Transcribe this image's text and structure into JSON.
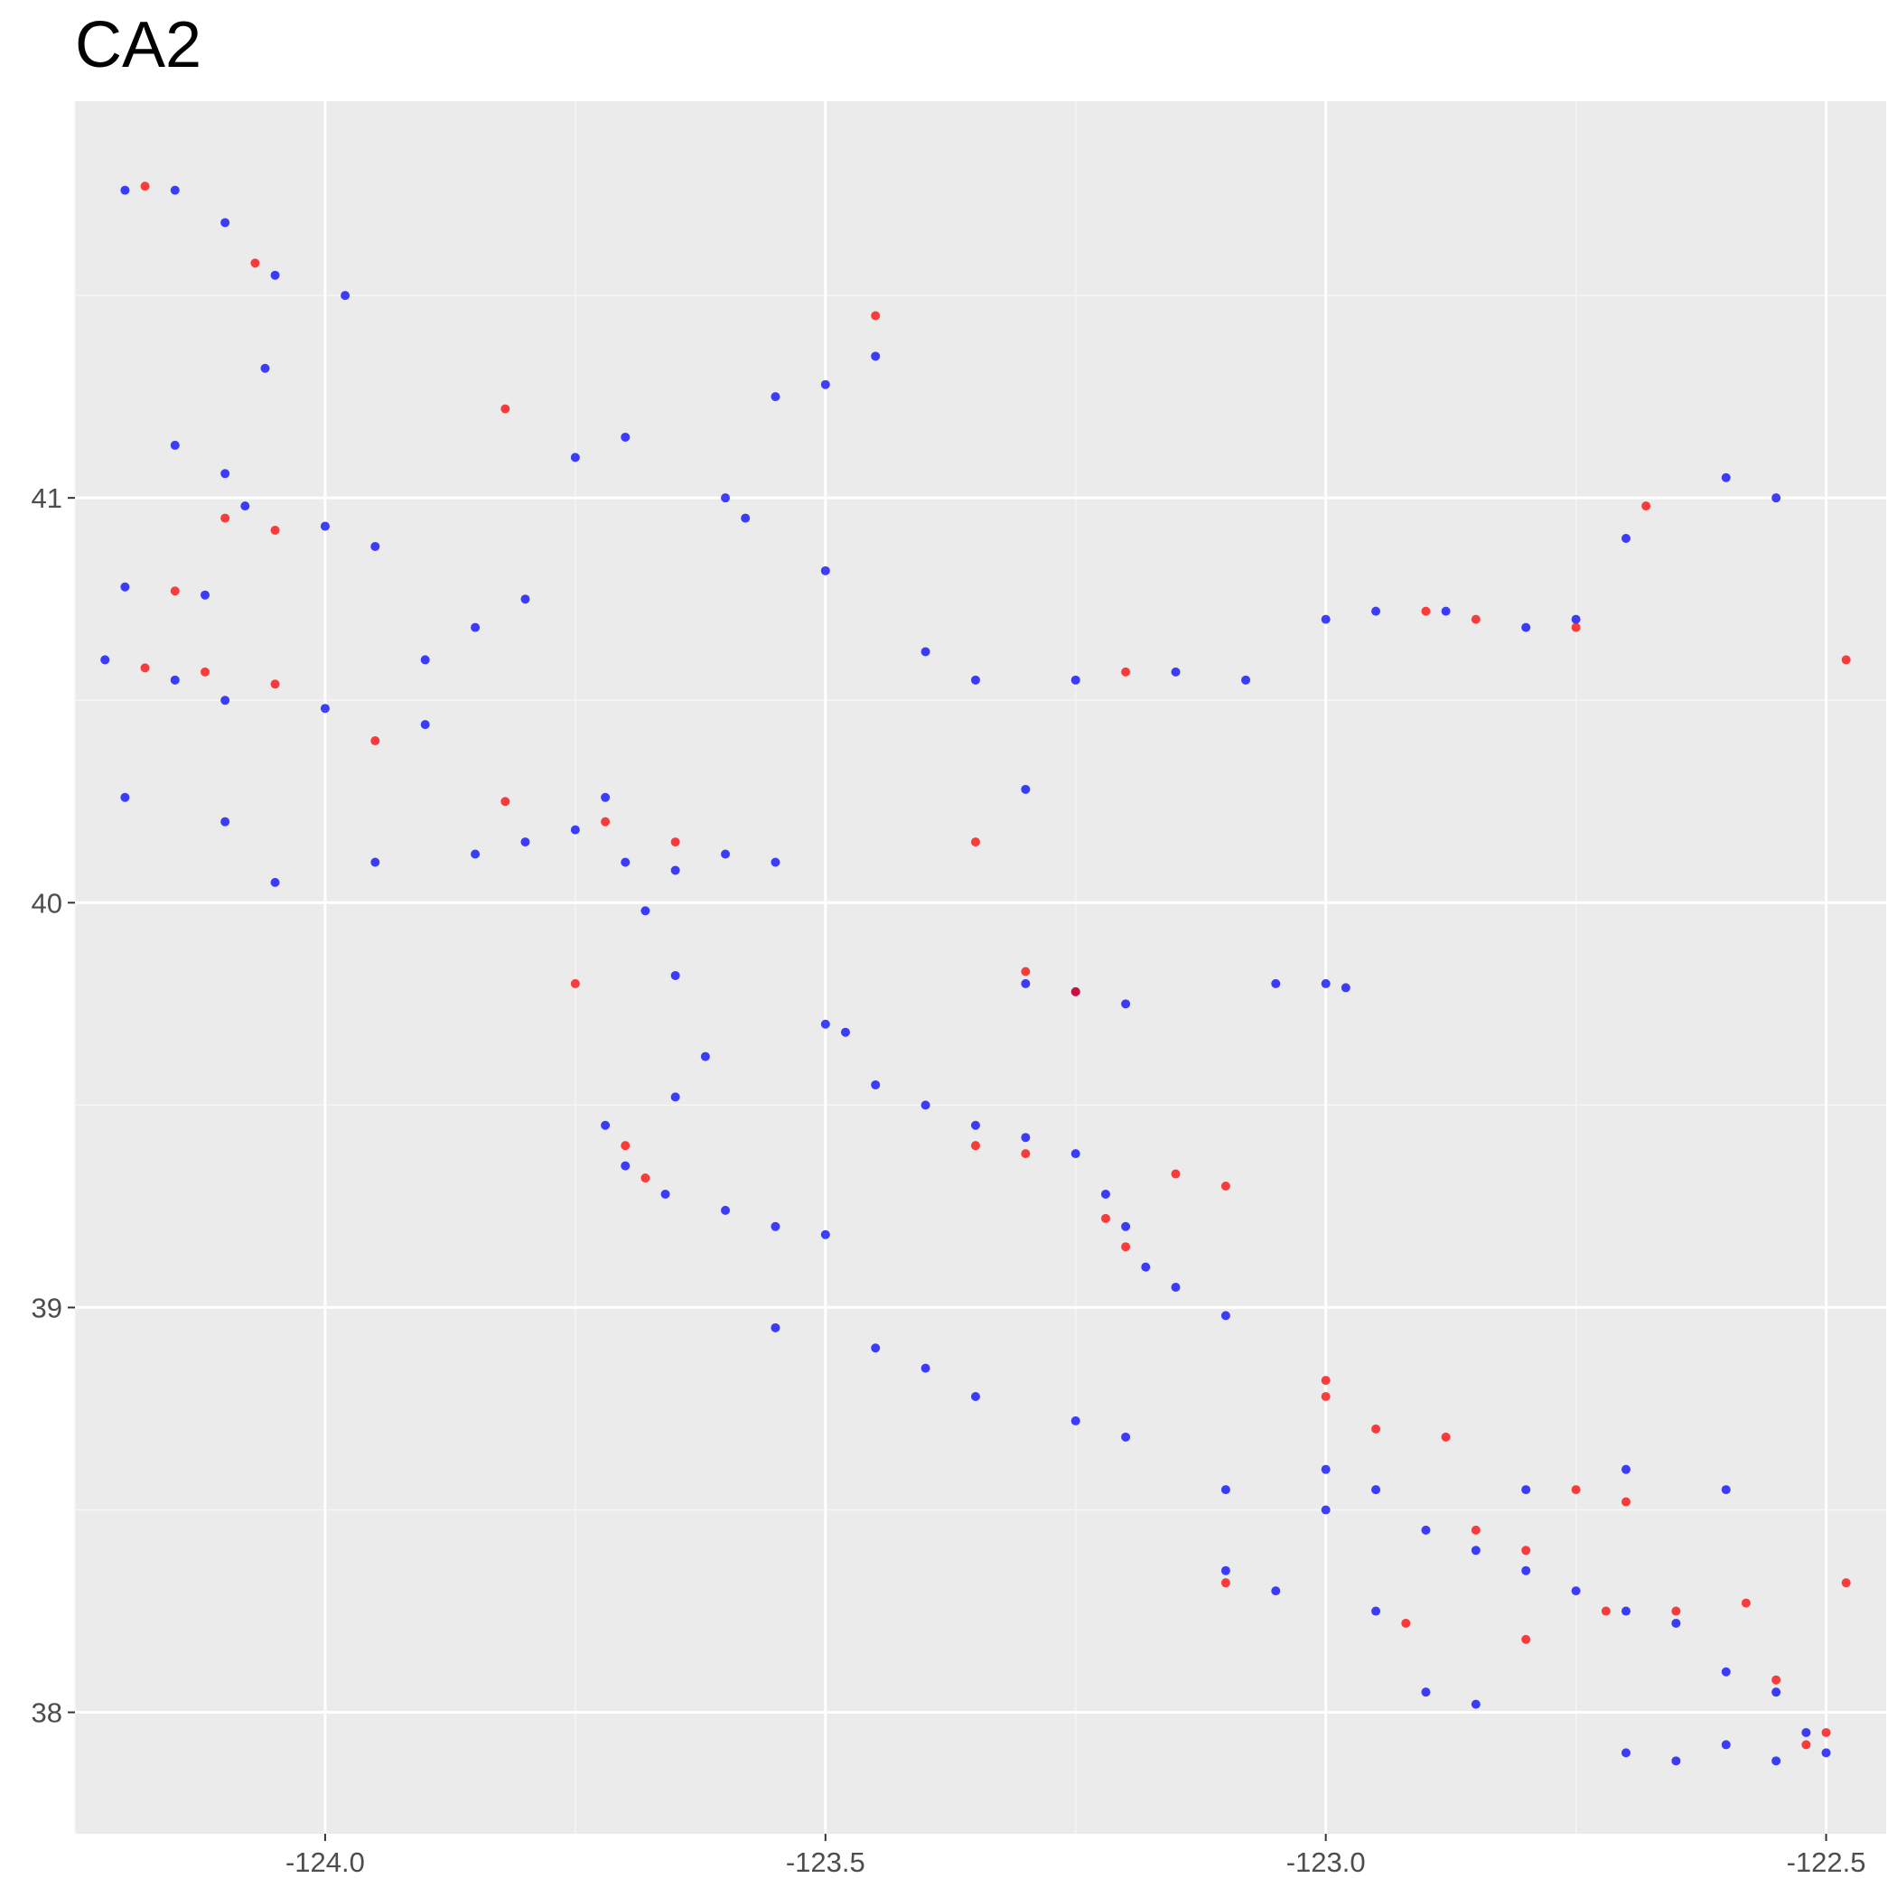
{
  "chart_data": {
    "type": "scatter",
    "title": "CA2",
    "xlabel": "",
    "ylabel": "",
    "xlim": [
      -124.25,
      -122.44
    ],
    "ylim": [
      37.7,
      41.98
    ],
    "grid": true,
    "legend": "none",
    "colors": {
      "panel": "#ebebeb",
      "grid_major": "#ffffff",
      "grid_minor": "#f6f6f6",
      "series_a": "#0000ff",
      "series_b": "#ff0000",
      "axis_text": "#4d4d4d"
    },
    "x_ticks": [
      -124.0,
      -123.5,
      -123.0,
      -122.5
    ],
    "x_tick_labels": [
      "-124.0",
      "-123.5",
      "-123.0",
      "-122.5"
    ],
    "y_ticks": [
      38,
      39,
      40,
      41
    ],
    "y_tick_labels": [
      "38",
      "39",
      "40",
      "41"
    ],
    "series": [
      {
        "color": "#0000ff",
        "points": [
          [
            -124.2,
            41.76
          ],
          [
            -124.15,
            41.76
          ],
          [
            -124.1,
            41.68
          ],
          [
            -124.05,
            41.55
          ],
          [
            -123.98,
            41.5
          ],
          [
            -124.06,
            41.32
          ],
          [
            -124.15,
            41.13
          ],
          [
            -124.1,
            41.06
          ],
          [
            -124.08,
            40.98
          ],
          [
            -124.0,
            40.93
          ],
          [
            -123.95,
            40.88
          ],
          [
            -124.2,
            40.78
          ],
          [
            -124.12,
            40.76
          ],
          [
            -124.22,
            40.6
          ],
          [
            -124.15,
            40.55
          ],
          [
            -124.1,
            40.5
          ],
          [
            -124.0,
            40.48
          ],
          [
            -123.9,
            40.44
          ],
          [
            -124.2,
            40.26
          ],
          [
            -124.1,
            40.2
          ],
          [
            -124.05,
            40.05
          ],
          [
            -123.95,
            40.1
          ],
          [
            -123.85,
            40.12
          ],
          [
            -123.8,
            40.15
          ],
          [
            -123.75,
            40.18
          ],
          [
            -123.72,
            40.26
          ],
          [
            -123.7,
            40.1
          ],
          [
            -123.65,
            40.08
          ],
          [
            -123.6,
            40.12
          ],
          [
            -123.55,
            40.1
          ],
          [
            -123.68,
            39.98
          ],
          [
            -123.65,
            39.82
          ],
          [
            -123.62,
            39.62
          ],
          [
            -123.65,
            39.52
          ],
          [
            -123.72,
            39.45
          ],
          [
            -123.7,
            39.35
          ],
          [
            -123.66,
            39.28
          ],
          [
            -123.6,
            39.24
          ],
          [
            -123.55,
            39.2
          ],
          [
            -123.5,
            39.18
          ],
          [
            -123.55,
            38.95
          ],
          [
            -123.45,
            38.9
          ],
          [
            -123.4,
            38.85
          ],
          [
            -123.35,
            38.78
          ],
          [
            -123.25,
            38.72
          ],
          [
            -123.2,
            38.68
          ],
          [
            -123.1,
            38.55
          ],
          [
            -123.0,
            38.5
          ],
          [
            -122.9,
            38.45
          ],
          [
            -122.85,
            38.4
          ],
          [
            -122.8,
            38.35
          ],
          [
            -122.75,
            38.3
          ],
          [
            -122.7,
            38.25
          ],
          [
            -122.65,
            38.22
          ],
          [
            -122.6,
            38.1
          ],
          [
            -122.55,
            38.05
          ],
          [
            -122.52,
            37.95
          ],
          [
            -122.5,
            37.9
          ],
          [
            -122.55,
            37.88
          ],
          [
            -122.6,
            37.92
          ],
          [
            -123.45,
            39.55
          ],
          [
            -123.4,
            39.5
          ],
          [
            -123.35,
            39.45
          ],
          [
            -123.3,
            39.42
          ],
          [
            -123.25,
            39.38
          ],
          [
            -123.22,
            39.28
          ],
          [
            -123.2,
            39.2
          ],
          [
            -123.18,
            39.1
          ],
          [
            -123.15,
            39.05
          ],
          [
            -123.1,
            38.98
          ],
          [
            -123.3,
            39.8
          ],
          [
            -123.25,
            39.78
          ],
          [
            -123.2,
            39.75
          ],
          [
            -123.5,
            39.7
          ],
          [
            -123.48,
            39.68
          ],
          [
            -123.35,
            40.55
          ],
          [
            -123.25,
            40.55
          ],
          [
            -123.15,
            40.57
          ],
          [
            -123.08,
            40.55
          ],
          [
            -123.0,
            40.7
          ],
          [
            -122.95,
            40.72
          ],
          [
            -122.88,
            40.72
          ],
          [
            -122.8,
            40.68
          ],
          [
            -122.75,
            40.7
          ],
          [
            -122.7,
            40.9
          ],
          [
            -122.6,
            41.05
          ],
          [
            -122.55,
            41.0
          ],
          [
            -123.45,
            41.35
          ],
          [
            -123.5,
            41.28
          ],
          [
            -123.55,
            41.25
          ],
          [
            -123.6,
            41.0
          ],
          [
            -123.58,
            40.95
          ],
          [
            -123.5,
            40.82
          ],
          [
            -123.4,
            40.62
          ],
          [
            -123.3,
            40.28
          ],
          [
            -123.9,
            40.6
          ],
          [
            -123.85,
            40.68
          ],
          [
            -123.8,
            40.75
          ],
          [
            -123.75,
            41.1
          ],
          [
            -123.7,
            41.15
          ],
          [
            -123.0,
            38.6
          ],
          [
            -122.95,
            38.55
          ],
          [
            -122.8,
            38.55
          ],
          [
            -122.7,
            38.6
          ],
          [
            -122.6,
            38.55
          ],
          [
            -123.1,
            38.35
          ],
          [
            -123.05,
            38.3
          ],
          [
            -122.95,
            38.25
          ],
          [
            -122.9,
            38.05
          ],
          [
            -122.85,
            38.02
          ],
          [
            -122.7,
            37.9
          ],
          [
            -122.65,
            37.88
          ],
          [
            -123.0,
            39.8
          ],
          [
            -123.05,
            39.8
          ],
          [
            -122.98,
            39.79
          ]
        ]
      },
      {
        "color": "#ff0000",
        "points": [
          [
            -124.18,
            41.77
          ],
          [
            -124.07,
            41.58
          ],
          [
            -124.1,
            40.95
          ],
          [
            -124.05,
            40.92
          ],
          [
            -124.18,
            40.58
          ],
          [
            -124.12,
            40.57
          ],
          [
            -124.05,
            40.54
          ],
          [
            -124.15,
            40.77
          ],
          [
            -123.95,
            40.4
          ],
          [
            -123.82,
            40.25
          ],
          [
            -123.72,
            40.2
          ],
          [
            -123.65,
            40.15
          ],
          [
            -123.7,
            39.4
          ],
          [
            -123.68,
            39.32
          ],
          [
            -123.35,
            39.4
          ],
          [
            -123.3,
            39.38
          ],
          [
            -123.22,
            39.22
          ],
          [
            -123.2,
            39.15
          ],
          [
            -123.15,
            39.33
          ],
          [
            -123.1,
            39.3
          ],
          [
            -123.0,
            38.78
          ],
          [
            -122.95,
            38.7
          ],
          [
            -122.88,
            38.68
          ],
          [
            -122.85,
            38.45
          ],
          [
            -122.8,
            38.4
          ],
          [
            -122.72,
            38.25
          ],
          [
            -122.65,
            38.25
          ],
          [
            -122.55,
            38.08
          ],
          [
            -122.52,
            37.92
          ],
          [
            -122.5,
            37.95
          ],
          [
            -122.9,
            40.72
          ],
          [
            -122.85,
            40.7
          ],
          [
            -122.75,
            40.68
          ],
          [
            -122.68,
            40.98
          ],
          [
            -123.2,
            40.57
          ],
          [
            -123.45,
            41.45
          ],
          [
            -123.82,
            41.22
          ],
          [
            -123.3,
            39.83
          ],
          [
            -123.25,
            39.78
          ],
          [
            -123.0,
            38.82
          ],
          [
            -122.75,
            38.55
          ],
          [
            -122.7,
            38.52
          ],
          [
            -122.58,
            38.27
          ],
          [
            -122.48,
            38.32
          ],
          [
            -122.48,
            40.6
          ],
          [
            -123.35,
            40.15
          ],
          [
            -123.1,
            38.32
          ],
          [
            -122.92,
            38.22
          ],
          [
            -122.8,
            38.18
          ],
          [
            -123.75,
            39.8
          ]
        ]
      }
    ]
  }
}
